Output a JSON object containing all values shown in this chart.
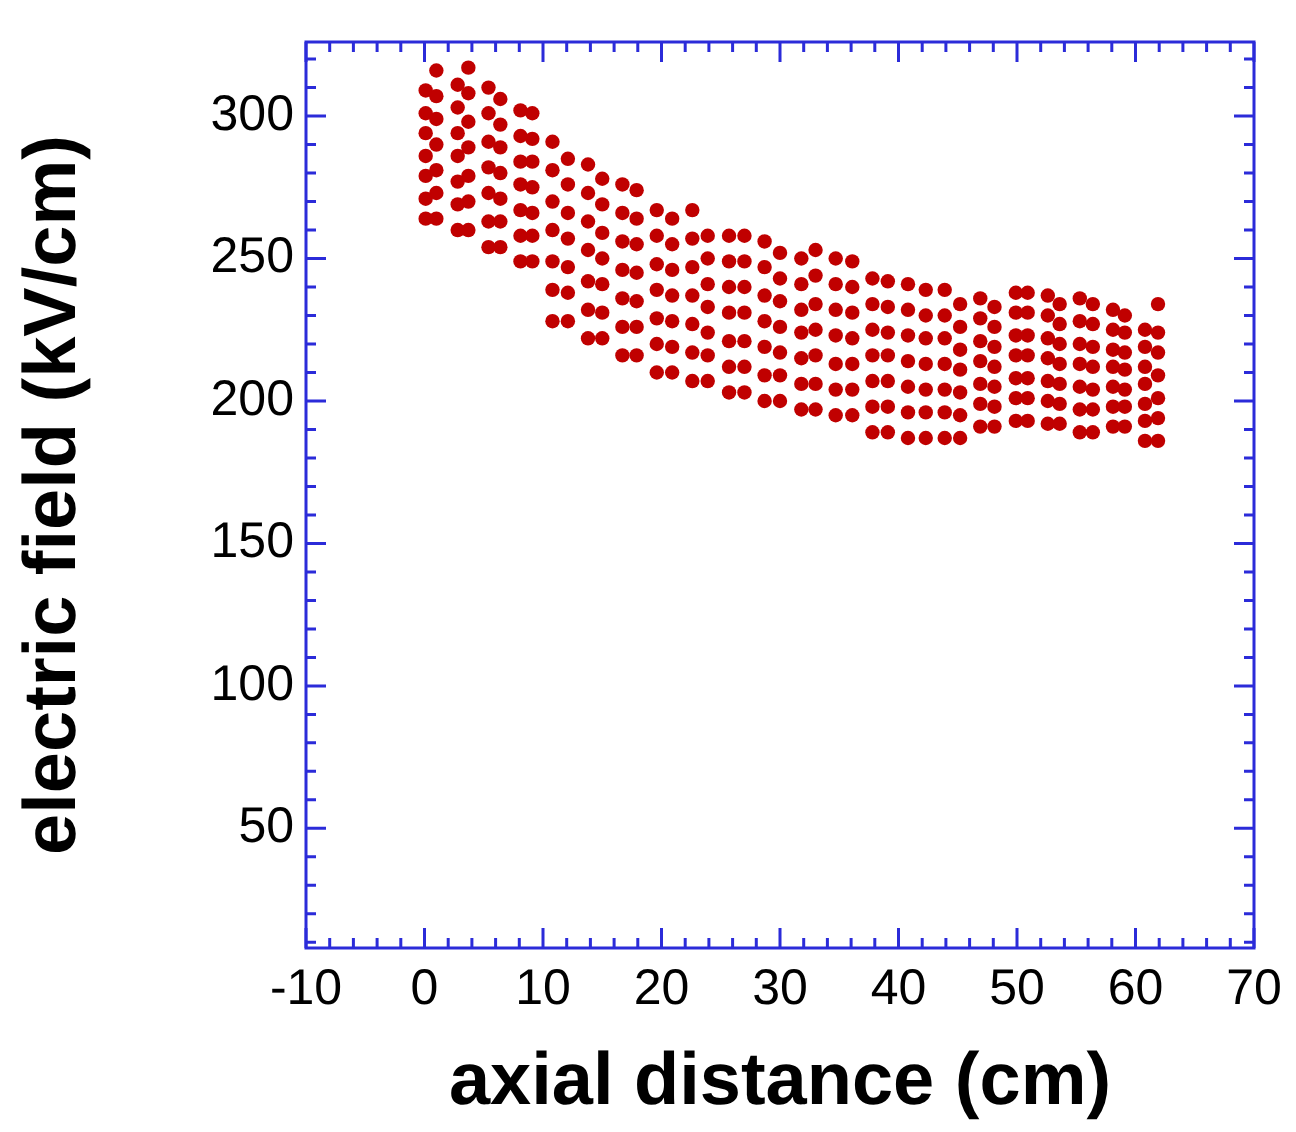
{
  "chart_data": {
    "type": "scatter",
    "xlabel": "axial distance (cm)",
    "ylabel": "electric field (kV/cm)",
    "marker": "circle",
    "grid": false,
    "xlim": [
      -10,
      70
    ],
    "ylim": [
      8,
      326
    ],
    "xticks": [
      -10,
      {
        "value": -8,
        "label": null
      },
      {
        "value": -6,
        "label": null
      },
      {
        "value": -4,
        "label": null
      },
      {
        "value": -2,
        "label": null
      },
      0,
      {
        "value": 2,
        "label": null
      },
      {
        "value": 4,
        "label": null
      },
      {
        "value": 6,
        "label": null
      },
      {
        "value": 8,
        "label": null
      },
      10,
      {
        "value": 12,
        "label": null
      },
      {
        "value": 14,
        "label": null
      },
      {
        "value": 16,
        "label": null
      },
      {
        "value": 18,
        "label": null
      },
      20,
      {
        "value": 22,
        "label": null
      },
      {
        "value": 24,
        "label": null
      },
      {
        "value": 26,
        "label": null
      },
      {
        "value": 28,
        "label": null
      },
      30,
      {
        "value": 32,
        "label": null
      },
      {
        "value": 34,
        "label": null
      },
      {
        "value": 36,
        "label": null
      },
      {
        "value": 38,
        "label": null
      },
      40,
      {
        "value": 42,
        "label": null
      },
      {
        "value": 44,
        "label": null
      },
      {
        "value": 46,
        "label": null
      },
      {
        "value": 48,
        "label": null
      },
      50,
      {
        "value": 52,
        "label": null
      },
      {
        "value": 54,
        "label": null
      },
      {
        "value": 56,
        "label": null
      },
      {
        "value": 58,
        "label": null
      },
      60,
      {
        "value": 62,
        "label": null
      },
      {
        "value": 64,
        "label": null
      },
      {
        "value": 66,
        "label": null
      },
      {
        "value": 68,
        "label": null
      },
      70
    ],
    "yticks": [
      {
        "value": 10,
        "label": null
      },
      {
        "value": 20,
        "label": null
      },
      {
        "value": 30,
        "label": null
      },
      {
        "value": 40,
        "label": null
      },
      50,
      {
        "value": 60,
        "label": null
      },
      {
        "value": 70,
        "label": null
      },
      {
        "value": 80,
        "label": null
      },
      {
        "value": 90,
        "label": null
      },
      100,
      {
        "value": 110,
        "label": null
      },
      {
        "value": 120,
        "label": null
      },
      {
        "value": 130,
        "label": null
      },
      {
        "value": 140,
        "label": null
      },
      150,
      {
        "value": 160,
        "label": null
      },
      {
        "value": 170,
        "label": null
      },
      {
        "value": 180,
        "label": null
      },
      {
        "value": 190,
        "label": null
      },
      200,
      {
        "value": 210,
        "label": null
      },
      {
        "value": 220,
        "label": null
      },
      {
        "value": 230,
        "label": null
      },
      {
        "value": 240,
        "label": null
      },
      250,
      {
        "value": 260,
        "label": null
      },
      {
        "value": 270,
        "label": null
      },
      {
        "value": 280,
        "label": null
      },
      {
        "value": 290,
        "label": null
      },
      300,
      {
        "value": 310,
        "label": null
      },
      {
        "value": 320,
        "label": null
      }
    ],
    "series": [
      {
        "color": "#c00000",
        "x": [
          0.1,
          0.1,
          0.1,
          0.1,
          0.1,
          0.1,
          0.1,
          1.0,
          1.0,
          1.0,
          1.0,
          1.0,
          1.0,
          1.0,
          2.8,
          2.8,
          2.8,
          2.8,
          2.8,
          2.8,
          2.8,
          3.7,
          3.7,
          3.7,
          3.7,
          3.7,
          3.7,
          3.7,
          5.4,
          5.4,
          5.4,
          5.4,
          5.4,
          5.4,
          5.4,
          6.4,
          6.4,
          6.4,
          6.4,
          6.4,
          6.4,
          6.4,
          8.1,
          8.1,
          8.1,
          8.1,
          8.1,
          8.1,
          8.1,
          9.1,
          9.1,
          9.1,
          9.1,
          9.1,
          9.1,
          9.1,
          10.8,
          10.8,
          10.8,
          10.8,
          10.8,
          10.8,
          10.8,
          12.1,
          12.1,
          12.1,
          12.1,
          12.1,
          12.1,
          12.1,
          13.8,
          13.8,
          13.8,
          13.8,
          13.8,
          13.8,
          13.8,
          15.0,
          15.0,
          15.0,
          15.0,
          15.0,
          15.0,
          15.0,
          16.7,
          16.7,
          16.7,
          16.7,
          16.7,
          16.7,
          16.7,
          17.9,
          17.9,
          17.9,
          17.9,
          17.9,
          17.9,
          17.9,
          19.6,
          19.6,
          19.6,
          19.6,
          19.6,
          19.6,
          19.6,
          20.9,
          20.9,
          20.9,
          20.9,
          20.9,
          20.9,
          20.9,
          22.6,
          22.6,
          22.6,
          22.6,
          22.6,
          22.6,
          22.6,
          23.9,
          23.9,
          23.9,
          23.9,
          23.9,
          23.9,
          23.9,
          25.7,
          25.7,
          25.7,
          25.7,
          25.7,
          25.7,
          25.7,
          27.0,
          27.0,
          27.0,
          27.0,
          27.0,
          27.0,
          27.0,
          28.7,
          28.7,
          28.7,
          28.7,
          28.7,
          28.7,
          28.7,
          30.0,
          30.0,
          30.0,
          30.0,
          30.0,
          30.0,
          30.0,
          31.8,
          31.8,
          31.8,
          31.8,
          31.8,
          31.8,
          31.8,
          33.0,
          33.0,
          33.0,
          33.0,
          33.0,
          33.0,
          33.0,
          34.7,
          34.7,
          34.7,
          34.7,
          34.7,
          34.7,
          34.7,
          36.1,
          36.1,
          36.1,
          36.1,
          36.1,
          36.1,
          36.1,
          37.8,
          37.8,
          37.8,
          37.8,
          37.8,
          37.8,
          37.8,
          39.1,
          39.1,
          39.1,
          39.1,
          39.1,
          39.1,
          39.1,
          40.8,
          40.8,
          40.8,
          40.8,
          40.8,
          40.8,
          40.8,
          42.3,
          42.3,
          42.3,
          42.3,
          42.3,
          42.3,
          42.3,
          43.9,
          43.9,
          43.9,
          43.9,
          43.9,
          43.9,
          43.9,
          45.2,
          45.2,
          45.2,
          45.2,
          45.2,
          45.2,
          45.2,
          46.9,
          46.9,
          46.9,
          46.9,
          46.9,
          46.9,
          46.9,
          48.1,
          48.1,
          48.1,
          48.1,
          48.1,
          48.1,
          48.1,
          49.9,
          49.9,
          49.9,
          49.9,
          49.9,
          49.9,
          49.9,
          50.9,
          50.9,
          50.9,
          50.9,
          50.9,
          50.9,
          50.9,
          52.6,
          52.6,
          52.6,
          52.6,
          52.6,
          52.6,
          52.6,
          53.6,
          53.6,
          53.6,
          53.6,
          53.6,
          53.6,
          53.6,
          55.3,
          55.3,
          55.3,
          55.3,
          55.3,
          55.3,
          55.3,
          56.4,
          56.4,
          56.4,
          56.4,
          56.4,
          56.4,
          56.4,
          58.1,
          58.1,
          58.1,
          58.1,
          58.1,
          58.1,
          58.1,
          59.1,
          59.1,
          59.1,
          59.1,
          59.1,
          59.1,
          59.1,
          60.8,
          60.8,
          60.8,
          60.8,
          60.8,
          60.8,
          60.8,
          61.9,
          61.9,
          61.9,
          61.9,
          61.9,
          61.9,
          61.9
        ],
        "values": [
          309,
          301,
          294,
          286,
          279,
          271,
          264,
          316,
          307,
          299,
          290,
          281,
          273,
          264,
          311,
          303,
          294,
          286,
          277,
          269,
          260,
          317,
          308,
          298,
          289,
          279,
          270,
          260,
          310,
          301,
          291,
          282,
          273,
          263,
          254,
          306,
          297,
          289,
          280,
          271,
          263,
          254,
          302,
          293,
          284,
          276,
          267,
          258,
          249,
          301,
          292,
          284,
          275,
          266,
          258,
          249,
          291,
          281,
          270,
          260,
          249,
          239,
          228,
          285,
          276,
          266,
          257,
          247,
          238,
          228,
          283,
          273,
          263,
          253,
          242,
          232,
          222,
          278,
          269,
          259,
          250,
          241,
          231,
          222,
          276,
          266,
          256,
          246,
          236,
          226,
          216,
          274,
          264,
          255,
          245,
          235,
          226,
          216,
          267,
          258,
          248,
          239,
          229,
          220,
          210,
          264,
          255,
          246,
          237,
          228,
          219,
          210,
          267,
          257,
          247,
          237,
          227,
          217,
          207,
          258,
          250,
          241,
          233,
          224,
          216,
          207,
          258,
          249,
          240,
          231,
          221,
          212,
          203,
          258,
          249,
          240,
          231,
          221,
          212,
          203,
          256,
          247,
          237,
          228,
          219,
          209,
          200,
          252,
          243,
          235,
          226,
          217,
          209,
          200,
          250,
          241,
          232,
          224,
          215,
          206,
          197,
          253,
          244,
          234,
          225,
          216,
          206,
          197,
          250,
          241,
          232,
          223,
          213,
          204,
          195,
          249,
          240,
          231,
          222,
          213,
          204,
          195,
          243,
          234,
          225,
          216,
          207,
          198,
          189,
          242,
          233,
          224,
          216,
          207,
          198,
          189,
          241,
          232,
          223,
          214,
          205,
          196,
          187,
          239,
          230,
          222,
          213,
          204,
          196,
          187,
          239,
          230,
          222,
          213,
          204,
          196,
          187,
          234,
          226,
          218,
          211,
          203,
          195,
          187,
          236,
          229,
          221,
          214,
          206,
          199,
          191,
          233,
          226,
          219,
          212,
          205,
          198,
          191,
          238,
          231,
          223,
          216,
          208,
          201,
          193,
          238,
          231,
          223,
          216,
          208,
          201,
          193,
          237,
          230,
          222,
          215,
          207,
          200,
          192,
          234,
          227,
          220,
          213,
          206,
          199,
          192,
          236,
          228,
          220,
          213,
          205,
          197,
          189,
          234,
          227,
          219,
          212,
          204,
          197,
          189,
          232,
          225,
          218,
          212,
          205,
          198,
          191,
          230,
          224,
          217,
          211,
          204,
          198,
          191,
          225,
          219,
          212,
          206,
          199,
          193,
          186,
          234,
          224,
          217,
          209,
          201,
          194,
          186
        ]
      }
    ]
  }
}
